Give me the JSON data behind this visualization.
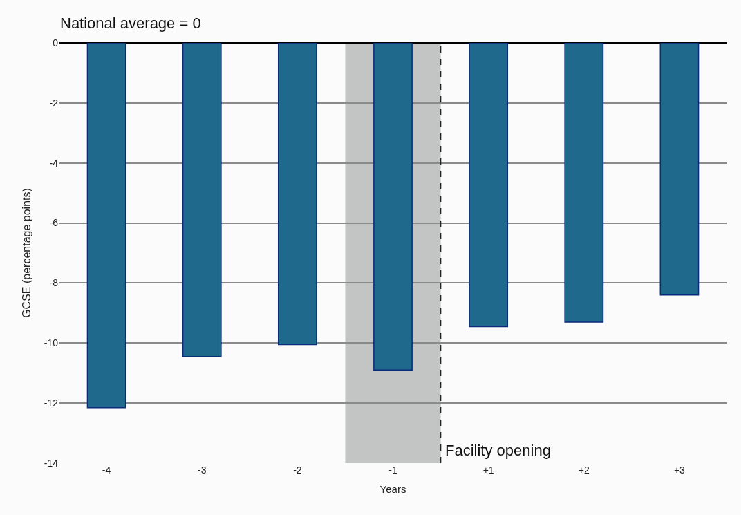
{
  "chart_data": {
    "type": "bar",
    "xlabel": "Years",
    "ylabel": "GCSE (percentage points)",
    "annotations": [
      "National average = 0"
    ],
    "categories": [
      "-4",
      "-3",
      "-2",
      "-1",
      "+1",
      "+2",
      "+3"
    ],
    "values": [
      -12.15,
      -10.45,
      -10.05,
      -10.9,
      -9.45,
      -9.3,
      -8.4
    ],
    "color": "#1f6a8c",
    "ylim": [
      -14,
      0
    ],
    "yticks": [
      -14,
      -12,
      -10,
      -8,
      -6,
      -4,
      -2,
      0
    ],
    "grid": "y",
    "bands": [
      {
        "axis": "x",
        "from": "-1",
        "to": "-1",
        "color": "#c3c4c4"
      }
    ],
    "ref_lines": [
      {
        "axis": "x",
        "value": "-1",
        "label": "Facility opening",
        "line_style": "dashed",
        "color": "#222222"
      }
    ]
  }
}
